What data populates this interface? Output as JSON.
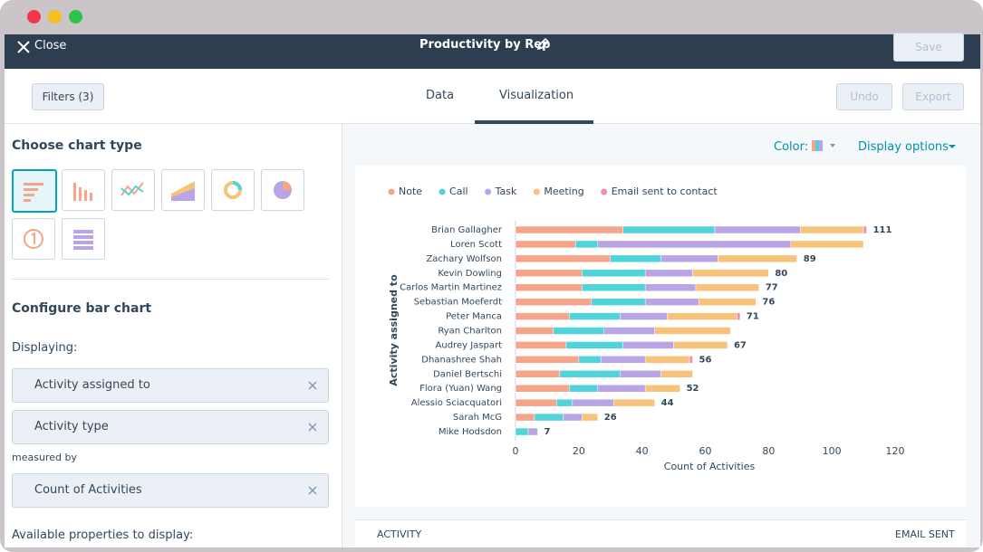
{
  "window": {
    "close": "Close",
    "title": "Productivity by Rep",
    "save": "Save"
  },
  "toolbar": {
    "filters": "Filters (3)",
    "tabs": [
      "Data",
      "Visualization"
    ],
    "undo": "Undo",
    "export": "Export"
  },
  "sidebar": {
    "choose_title": "Choose chart type",
    "configure_title": "Configure bar chart",
    "displaying": "Displaying:",
    "display_fields": [
      "Activity assigned to",
      "Activity type"
    ],
    "measured_by": "measured by",
    "measure_field": "Count of Activities",
    "available": "Available properties to display:"
  },
  "chart_options": {
    "color": "Color:",
    "display_options": "Display options"
  },
  "chart_data": {
    "type": "bar",
    "orientation": "horizontal",
    "stacked": true,
    "categories": [
      "Brian Gallagher",
      "Loren Scott",
      "Zachary Wolfson",
      "Kevin Dowling",
      "Carlos Martin Martinez",
      "Sebastian Moeferdt",
      "Peter Manca",
      "Ryan Charlton",
      "Audrey Jaspart",
      "Dhanashree Shah",
      "Daniel Bertschi",
      "Flora (Yuan) Wang",
      "Alessio Sciacquatori",
      "Sarah McG",
      "Mike Hodsdon"
    ],
    "series": [
      {
        "name": "Note",
        "color": "#f4a58a",
        "values": [
          34,
          19,
          30,
          21,
          21,
          24,
          17,
          12,
          16,
          20,
          14,
          17,
          13,
          6,
          0
        ]
      },
      {
        "name": "Call",
        "color": "#51d3d9",
        "values": [
          29,
          7,
          16,
          20,
          20,
          17,
          16,
          16,
          18,
          7,
          19,
          9,
          5,
          9,
          4
        ]
      },
      {
        "name": "Task",
        "color": "#b9a5e6",
        "values": [
          27,
          61,
          18,
          15,
          16,
          17,
          15,
          16,
          16,
          14,
          13,
          15,
          13,
          6,
          3
        ]
      },
      {
        "name": "Meeting",
        "color": "#f7c37a",
        "values": [
          20,
          23,
          25,
          24,
          20,
          18,
          22,
          24,
          17,
          14,
          10,
          11,
          13,
          5,
          0
        ]
      },
      {
        "name": "Email sent to contact",
        "color": "#ea90b1",
        "values": [
          1,
          0,
          0,
          0,
          0,
          0,
          1,
          0,
          0,
          1,
          0,
          0,
          0,
          0,
          0
        ]
      }
    ],
    "totals": [
      111,
      null,
      89,
      80,
      77,
      76,
      71,
      null,
      67,
      56,
      null,
      52,
      44,
      26,
      7
    ],
    "xlim": [
      0,
      120
    ],
    "xticks": [
      0,
      20,
      40,
      60,
      80,
      100,
      120
    ],
    "xlabel": "Count of Activities",
    "ylabel": "Activity assigned to",
    "legend": "top-left",
    "grid": false
  },
  "table": {
    "headers": [
      "ACTIVITY",
      "EMAIL SENT"
    ]
  }
}
